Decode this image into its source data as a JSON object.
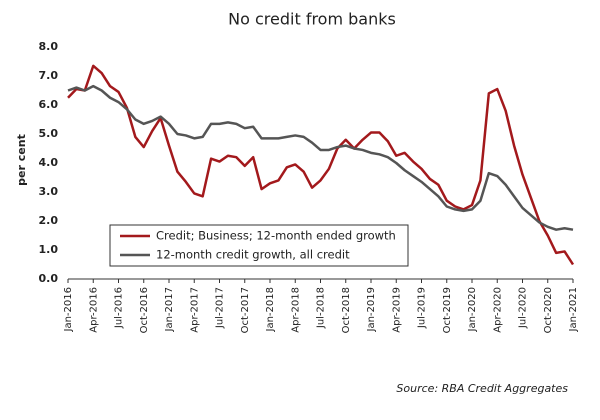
{
  "chart_data": {
    "type": "line",
    "title": "No credit from banks",
    "y_label": "per cent",
    "source": "Source: RBA Credit Aggregates",
    "categories": [
      "Jan-2016",
      null,
      null,
      "Apr-2016",
      null,
      null,
      "Jul-2016",
      null,
      null,
      "Oct-2016",
      null,
      null,
      "Jan-2017",
      null,
      null,
      "Apr-2017",
      null,
      null,
      "Jul-2017",
      null,
      null,
      "Oct-2017",
      null,
      null,
      "Jan-2018",
      null,
      null,
      "Apr-2018",
      null,
      null,
      "Jul-2018",
      null,
      null,
      "Oct-2018",
      null,
      null,
      "Jan-2019",
      null,
      null,
      "Apr-2019",
      null,
      null,
      "Jul-2019",
      null,
      null,
      "Oct-2019",
      null,
      null,
      "Jan-2020",
      null,
      null,
      "Apr-2020",
      null,
      null,
      "Jul-2020",
      null,
      null,
      "Oct-2020",
      null,
      null,
      "Jan-2021"
    ],
    "series": [
      {
        "name": "Credit; Business; 12-month ended growth",
        "color": "#a3191c",
        "values": [
          6.25,
          6.55,
          6.5,
          7.35,
          7.1,
          6.65,
          6.45,
          5.9,
          4.9,
          4.55,
          5.1,
          5.55,
          4.6,
          3.7,
          3.35,
          2.95,
          2.85,
          4.15,
          4.05,
          4.25,
          4.2,
          3.9,
          4.2,
          3.1,
          3.3,
          3.4,
          3.85,
          3.95,
          3.7,
          3.15,
          3.4,
          3.8,
          4.5,
          4.8,
          4.5,
          4.8,
          5.05,
          5.05,
          4.75,
          4.25,
          4.35,
          4.05,
          3.8,
          3.45,
          3.25,
          2.7,
          2.5,
          2.4,
          2.55,
          3.4,
          6.4,
          6.55,
          5.8,
          4.6,
          3.6,
          2.8,
          2.0,
          1.5,
          0.9,
          0.95,
          0.5
        ]
      },
      {
        "name": "12-month credit growth, all credit",
        "color": "#555555",
        "values": [
          6.5,
          6.6,
          6.5,
          6.65,
          6.5,
          6.25,
          6.1,
          5.85,
          5.5,
          5.35,
          5.45,
          5.6,
          5.35,
          5.0,
          4.95,
          4.85,
          4.9,
          5.35,
          5.35,
          5.4,
          5.35,
          5.2,
          5.25,
          4.85,
          4.85,
          4.85,
          4.9,
          4.95,
          4.9,
          4.7,
          4.45,
          4.45,
          4.55,
          4.6,
          4.5,
          4.45,
          4.35,
          4.3,
          4.2,
          4.0,
          3.75,
          3.55,
          3.35,
          3.1,
          2.85,
          2.5,
          2.4,
          2.35,
          2.4,
          2.7,
          3.65,
          3.55,
          3.25,
          2.85,
          2.45,
          2.2,
          1.95,
          1.8,
          1.7,
          1.75,
          1.7
        ]
      }
    ],
    "ylim": [
      0,
      8
    ],
    "yticks": [
      {
        "value": 0,
        "label": "0.0"
      },
      {
        "value": 1,
        "label": "1.0"
      },
      {
        "value": 2,
        "label": "2.0"
      },
      {
        "value": 3,
        "label": "3.0"
      },
      {
        "value": 4,
        "label": "4.0"
      },
      {
        "value": 5,
        "label": "5.0"
      },
      {
        "value": 6,
        "label": "6.0"
      },
      {
        "value": 7,
        "label": "7.0"
      },
      {
        "value": 8,
        "label": "8.0"
      }
    ],
    "grid": false,
    "legend": "lower left"
  }
}
